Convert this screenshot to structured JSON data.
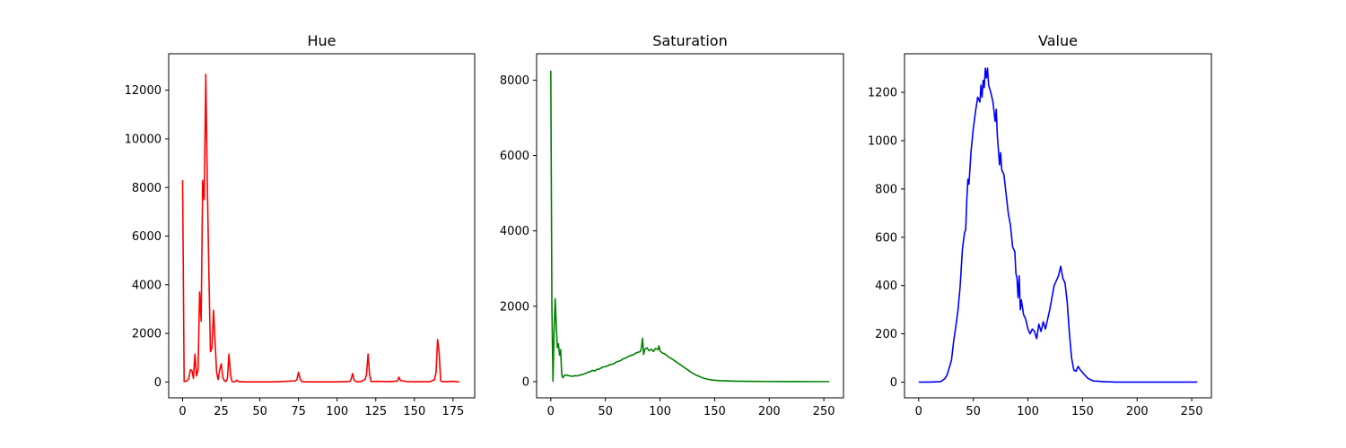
{
  "chart_data": [
    {
      "type": "line",
      "title": "Hue",
      "xlabel": "",
      "ylabel": "",
      "xlim": [
        -9,
        189
      ],
      "ylim": [
        -650,
        13500
      ],
      "xticks": [
        0,
        25,
        50,
        75,
        100,
        125,
        150,
        175
      ],
      "yticks": [
        0,
        2000,
        4000,
        6000,
        8000,
        10000,
        12000
      ],
      "grid": false,
      "series": [
        {
          "color": "#ff0000",
          "points": [
            [
              0,
              8300
            ],
            [
              1,
              20
            ],
            [
              2,
              30
            ],
            [
              3,
              50
            ],
            [
              4,
              150
            ],
            [
              5,
              500
            ],
            [
              6,
              480
            ],
            [
              7,
              150
            ],
            [
              8,
              1150
            ],
            [
              9,
              250
            ],
            [
              10,
              500
            ],
            [
              11,
              3700
            ],
            [
              12,
              2500
            ],
            [
              13,
              8300
            ],
            [
              14,
              7500
            ],
            [
              15,
              12650
            ],
            [
              16,
              8100
            ],
            [
              17,
              4500
            ],
            [
              18,
              1250
            ],
            [
              19,
              1400
            ],
            [
              20,
              2950
            ],
            [
              21,
              1700
            ],
            [
              22,
              400
            ],
            [
              23,
              100
            ],
            [
              24,
              500
            ],
            [
              25,
              750
            ],
            [
              26,
              200
            ],
            [
              27,
              50
            ],
            [
              28,
              20
            ],
            [
              29,
              150
            ],
            [
              30,
              1150
            ],
            [
              31,
              300
            ],
            [
              32,
              20
            ],
            [
              33,
              10
            ],
            [
              34,
              15
            ],
            [
              35,
              80
            ],
            [
              36,
              20
            ],
            [
              40,
              5
            ],
            [
              60,
              5
            ],
            [
              73,
              50
            ],
            [
              74,
              100
            ],
            [
              75,
              400
            ],
            [
              76,
              150
            ],
            [
              77,
              20
            ],
            [
              80,
              5
            ],
            [
              100,
              5
            ],
            [
              108,
              20
            ],
            [
              109,
              100
            ],
            [
              110,
              350
            ],
            [
              111,
              80
            ],
            [
              112,
              20
            ],
            [
              115,
              10
            ],
            [
              118,
              100
            ],
            [
              119,
              300
            ],
            [
              120,
              1150
            ],
            [
              121,
              300
            ],
            [
              122,
              20
            ],
            [
              126,
              30
            ],
            [
              130,
              20
            ],
            [
              135,
              20
            ],
            [
              139,
              40
            ],
            [
              140,
              200
            ],
            [
              141,
              60
            ],
            [
              145,
              20
            ],
            [
              150,
              10
            ],
            [
              160,
              10
            ],
            [
              163,
              100
            ],
            [
              164,
              400
            ],
            [
              165,
              1750
            ],
            [
              166,
              1200
            ],
            [
              167,
              50
            ],
            [
              168,
              10
            ],
            [
              172,
              20
            ],
            [
              175,
              30
            ],
            [
              178,
              10
            ],
            [
              179,
              5
            ]
          ]
        }
      ]
    },
    {
      "type": "line",
      "title": "Saturation",
      "xlabel": "",
      "ylabel": "",
      "xlim": [
        -13,
        268
      ],
      "ylim": [
        -430,
        8700
      ],
      "xticks": [
        0,
        50,
        100,
        150,
        200,
        250
      ],
      "yticks": [
        0,
        2000,
        4000,
        6000,
        8000
      ],
      "grid": false,
      "series": [
        {
          "color": "#008000",
          "points": [
            [
              0,
              8250
            ],
            [
              1,
              2000
            ],
            [
              2,
              10
            ],
            [
              3,
              1300
            ],
            [
              4,
              2200
            ],
            [
              5,
              1500
            ],
            [
              6,
              900
            ],
            [
              7,
              1000
            ],
            [
              8,
              700
            ],
            [
              9,
              850
            ],
            [
              10,
              200
            ],
            [
              11,
              100
            ],
            [
              12,
              150
            ],
            [
              14,
              180
            ],
            [
              16,
              160
            ],
            [
              18,
              150
            ],
            [
              20,
              140
            ],
            [
              22,
              160
            ],
            [
              24,
              150
            ],
            [
              26,
              170
            ],
            [
              28,
              180
            ],
            [
              30,
              200
            ],
            [
              32,
              220
            ],
            [
              34,
              250
            ],
            [
              36,
              260
            ],
            [
              38,
              300
            ],
            [
              40,
              280
            ],
            [
              42,
              320
            ],
            [
              44,
              330
            ],
            [
              46,
              360
            ],
            [
              48,
              390
            ],
            [
              50,
              400
            ],
            [
              52,
              420
            ],
            [
              54,
              450
            ],
            [
              56,
              460
            ],
            [
              58,
              480
            ],
            [
              60,
              520
            ],
            [
              62,
              540
            ],
            [
              64,
              560
            ],
            [
              66,
              600
            ],
            [
              68,
              620
            ],
            [
              70,
              650
            ],
            [
              72,
              680
            ],
            [
              74,
              700
            ],
            [
              76,
              720
            ],
            [
              78,
              760
            ],
            [
              80,
              780
            ],
            [
              82,
              800
            ],
            [
              83,
              900
            ],
            [
              84,
              1150
            ],
            [
              85,
              720
            ],
            [
              86,
              850
            ],
            [
              88,
              900
            ],
            [
              90,
              820
            ],
            [
              92,
              860
            ],
            [
              94,
              800
            ],
            [
              96,
              880
            ],
            [
              98,
              850
            ],
            [
              99,
              950
            ],
            [
              100,
              820
            ],
            [
              102,
              760
            ],
            [
              104,
              740
            ],
            [
              106,
              700
            ],
            [
              108,
              650
            ],
            [
              110,
              620
            ],
            [
              112,
              580
            ],
            [
              114,
              540
            ],
            [
              116,
              500
            ],
            [
              118,
              460
            ],
            [
              120,
              420
            ],
            [
              122,
              380
            ],
            [
              124,
              340
            ],
            [
              126,
              300
            ],
            [
              128,
              260
            ],
            [
              130,
              220
            ],
            [
              132,
              190
            ],
            [
              134,
              160
            ],
            [
              136,
              140
            ],
            [
              138,
              110
            ],
            [
              140,
              90
            ],
            [
              142,
              75
            ],
            [
              144,
              60
            ],
            [
              146,
              50
            ],
            [
              148,
              40
            ],
            [
              150,
              35
            ],
            [
              155,
              25
            ],
            [
              160,
              20
            ],
            [
              170,
              12
            ],
            [
              180,
              8
            ],
            [
              190,
              5
            ],
            [
              200,
              4
            ],
            [
              220,
              2
            ],
            [
              240,
              1
            ],
            [
              255,
              1
            ]
          ]
        }
      ]
    },
    {
      "type": "line",
      "title": "Value",
      "xlabel": "",
      "ylabel": "",
      "xlim": [
        -13,
        268
      ],
      "ylim": [
        -65,
        1360
      ],
      "xticks": [
        0,
        50,
        100,
        150,
        200,
        250
      ],
      "yticks": [
        0,
        200,
        400,
        600,
        800,
        1000,
        1200
      ],
      "grid": false,
      "series": [
        {
          "color": "#0000ff",
          "points": [
            [
              0,
              0
            ],
            [
              10,
              0
            ],
            [
              20,
              2
            ],
            [
              22,
              8
            ],
            [
              24,
              15
            ],
            [
              26,
              30
            ],
            [
              28,
              60
            ],
            [
              30,
              90
            ],
            [
              32,
              170
            ],
            [
              34,
              230
            ],
            [
              36,
              300
            ],
            [
              38,
              400
            ],
            [
              40,
              550
            ],
            [
              42,
              620
            ],
            [
              43,
              630
            ],
            [
              44,
              750
            ],
            [
              45,
              840
            ],
            [
              46,
              820
            ],
            [
              48,
              960
            ],
            [
              50,
              1050
            ],
            [
              52,
              1120
            ],
            [
              54,
              1180
            ],
            [
              56,
              1160
            ],
            [
              57,
              1230
            ],
            [
              58,
              1180
            ],
            [
              59,
              1250
            ],
            [
              60,
              1220
            ],
            [
              61,
              1300
            ],
            [
              62,
              1260
            ],
            [
              63,
              1300
            ],
            [
              64,
              1230
            ],
            [
              66,
              1200
            ],
            [
              68,
              1160
            ],
            [
              70,
              1080
            ],
            [
              71,
              1130
            ],
            [
              72,
              1020
            ],
            [
              74,
              900
            ],
            [
              75,
              950
            ],
            [
              76,
              880
            ],
            [
              78,
              860
            ],
            [
              80,
              780
            ],
            [
              82,
              700
            ],
            [
              84,
              650
            ],
            [
              86,
              560
            ],
            [
              88,
              540
            ],
            [
              89,
              450
            ],
            [
              90,
              430
            ],
            [
              91,
              350
            ],
            [
              92,
              440
            ],
            [
              93,
              300
            ],
            [
              94,
              340
            ],
            [
              96,
              280
            ],
            [
              98,
              260
            ],
            [
              100,
              220
            ],
            [
              102,
              200
            ],
            [
              104,
              220
            ],
            [
              106,
              210
            ],
            [
              108,
              180
            ],
            [
              110,
              240
            ],
            [
              112,
              210
            ],
            [
              114,
              250
            ],
            [
              116,
              220
            ],
            [
              118,
              260
            ],
            [
              120,
              300
            ],
            [
              122,
              350
            ],
            [
              124,
              400
            ],
            [
              126,
              420
            ],
            [
              128,
              440
            ],
            [
              130,
              480
            ],
            [
              132,
              430
            ],
            [
              134,
              410
            ],
            [
              136,
              330
            ],
            [
              138,
              200
            ],
            [
              140,
              100
            ],
            [
              142,
              50
            ],
            [
              144,
              45
            ],
            [
              146,
              65
            ],
            [
              148,
              50
            ],
            [
              150,
              40
            ],
            [
              152,
              30
            ],
            [
              155,
              15
            ],
            [
              160,
              5
            ],
            [
              170,
              2
            ],
            [
              180,
              0
            ],
            [
              200,
              0
            ],
            [
              255,
              0
            ]
          ]
        }
      ]
    }
  ]
}
